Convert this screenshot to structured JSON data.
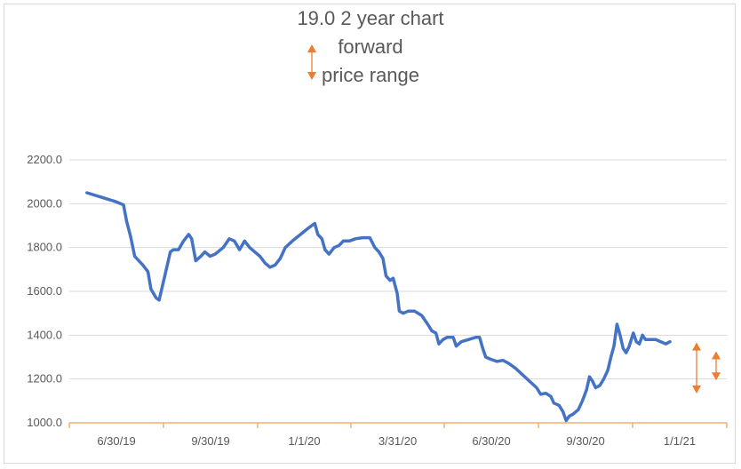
{
  "chart_data": {
    "type": "line",
    "title_lines": [
      "19.0 2 year chart",
      "forward",
      "price range"
    ],
    "x_tick_labels": [
      "6/30/19",
      "9/30/19",
      "1/1/20",
      "3/31/20",
      "6/30/20",
      "9/30/20",
      "1/1/21"
    ],
    "y_tick_labels": [
      "1000.0",
      "1200.0",
      "1400.0",
      "1600.0",
      "1800.0",
      "2000.0",
      "2200.0"
    ],
    "ylim": [
      1000,
      2200
    ],
    "grid": "horizontal",
    "colors": {
      "line": "#4472c4",
      "axis": "#f0b070",
      "grid": "#d9d9d9",
      "arrow": "#ed7d31"
    },
    "series": [
      {
        "values": [
          [
            "2019-06-01",
            2050
          ],
          [
            "2019-06-15",
            2030
          ],
          [
            "2019-06-29",
            2010
          ],
          [
            "2019-07-07",
            1995
          ],
          [
            "2019-07-10",
            1920
          ],
          [
            "2019-07-14",
            1850
          ],
          [
            "2019-07-18",
            1760
          ],
          [
            "2019-07-22",
            1740
          ],
          [
            "2019-07-26",
            1720
          ],
          [
            "2019-07-31",
            1690
          ],
          [
            "2019-08-03",
            1610
          ],
          [
            "2019-08-08",
            1570
          ],
          [
            "2019-08-11",
            1560
          ],
          [
            "2019-08-17",
            1680
          ],
          [
            "2019-08-22",
            1780
          ],
          [
            "2019-08-25",
            1790
          ],
          [
            "2019-08-30",
            1790
          ],
          [
            "2019-09-04",
            1830
          ],
          [
            "2019-09-09",
            1860
          ],
          [
            "2019-09-12",
            1840
          ],
          [
            "2019-09-16",
            1740
          ],
          [
            "2019-09-21",
            1760
          ],
          [
            "2019-09-25",
            1780
          ],
          [
            "2019-09-30",
            1760
          ],
          [
            "2019-10-05",
            1770
          ],
          [
            "2019-10-13",
            1800
          ],
          [
            "2019-10-19",
            1840
          ],
          [
            "2019-10-24",
            1830
          ],
          [
            "2019-10-29",
            1790
          ],
          [
            "2019-11-03",
            1830
          ],
          [
            "2019-11-08",
            1800
          ],
          [
            "2019-11-13",
            1780
          ],
          [
            "2019-11-18",
            1760
          ],
          [
            "2019-11-23",
            1730
          ],
          [
            "2019-11-28",
            1710
          ],
          [
            "2019-12-03",
            1720
          ],
          [
            "2019-12-08",
            1750
          ],
          [
            "2019-12-13",
            1800
          ],
          [
            "2019-12-20",
            1830
          ],
          [
            "2019-12-28",
            1860
          ],
          [
            "2020-01-05",
            1890
          ],
          [
            "2020-01-11",
            1910
          ],
          [
            "2020-01-14",
            1860
          ],
          [
            "2020-01-18",
            1840
          ],
          [
            "2020-01-21",
            1790
          ],
          [
            "2020-01-25",
            1770
          ],
          [
            "2020-01-30",
            1800
          ],
          [
            "2020-02-04",
            1810
          ],
          [
            "2020-02-08",
            1830
          ],
          [
            "2020-02-14",
            1830
          ],
          [
            "2020-02-20",
            1840
          ],
          [
            "2020-02-27",
            1845
          ],
          [
            "2020-03-05",
            1845
          ],
          [
            "2020-03-10",
            1800
          ],
          [
            "2020-03-14",
            1780
          ],
          [
            "2020-03-18",
            1750
          ],
          [
            "2020-03-21",
            1670
          ],
          [
            "2020-03-25",
            1650
          ],
          [
            "2020-03-28",
            1660
          ],
          [
            "2020-04-01",
            1590
          ],
          [
            "2020-04-03",
            1510
          ],
          [
            "2020-04-07",
            1500
          ],
          [
            "2020-04-12",
            1510
          ],
          [
            "2020-04-18",
            1510
          ],
          [
            "2020-04-25",
            1490
          ],
          [
            "2020-05-01",
            1450
          ],
          [
            "2020-05-05",
            1420
          ],
          [
            "2020-05-09",
            1410
          ],
          [
            "2020-05-12",
            1360
          ],
          [
            "2020-05-16",
            1380
          ],
          [
            "2020-05-20",
            1390
          ],
          [
            "2020-05-26",
            1390
          ],
          [
            "2020-05-29",
            1350
          ],
          [
            "2020-06-03",
            1370
          ],
          [
            "2020-06-10",
            1380
          ],
          [
            "2020-06-17",
            1390
          ],
          [
            "2020-06-21",
            1390
          ],
          [
            "2020-06-24",
            1340
          ],
          [
            "2020-06-27",
            1300
          ],
          [
            "2020-07-02",
            1290
          ],
          [
            "2020-07-08",
            1280
          ],
          [
            "2020-07-14",
            1285
          ],
          [
            "2020-07-20",
            1270
          ],
          [
            "2020-07-26",
            1250
          ],
          [
            "2020-08-02",
            1220
          ],
          [
            "2020-08-09",
            1190
          ],
          [
            "2020-08-16",
            1160
          ],
          [
            "2020-08-20",
            1130
          ],
          [
            "2020-08-25",
            1135
          ],
          [
            "2020-08-30",
            1120
          ],
          [
            "2020-09-02",
            1090
          ],
          [
            "2020-09-07",
            1080
          ],
          [
            "2020-09-11",
            1050
          ],
          [
            "2020-09-14",
            1010
          ],
          [
            "2020-09-17",
            1030
          ],
          [
            "2020-09-21",
            1040
          ],
          [
            "2020-09-26",
            1060
          ],
          [
            "2020-09-30",
            1100
          ],
          [
            "2020-10-04",
            1150
          ],
          [
            "2020-10-07",
            1210
          ],
          [
            "2020-10-10",
            1190
          ],
          [
            "2020-10-13",
            1160
          ],
          [
            "2020-10-17",
            1170
          ],
          [
            "2020-10-21",
            1200
          ],
          [
            "2020-10-25",
            1240
          ],
          [
            "2020-10-28",
            1300
          ],
          [
            "2020-10-31",
            1350
          ],
          [
            "2020-11-03",
            1450
          ],
          [
            "2020-11-06",
            1400
          ],
          [
            "2020-11-09",
            1340
          ],
          [
            "2020-11-12",
            1320
          ],
          [
            "2020-11-15",
            1350
          ],
          [
            "2020-11-19",
            1410
          ],
          [
            "2020-11-22",
            1370
          ],
          [
            "2020-11-25",
            1360
          ],
          [
            "2020-11-28",
            1400
          ],
          [
            "2020-12-01",
            1380
          ],
          [
            "2020-12-06",
            1380
          ],
          [
            "2020-12-11",
            1380
          ],
          [
            "2020-12-16",
            1370
          ],
          [
            "2020-12-21",
            1360
          ],
          [
            "2020-12-25",
            1370
          ]
        ]
      }
    ],
    "range_markers": [
      {
        "from": 1150,
        "to": 1350
      },
      {
        "from": 1210,
        "to": 1310
      }
    ]
  }
}
